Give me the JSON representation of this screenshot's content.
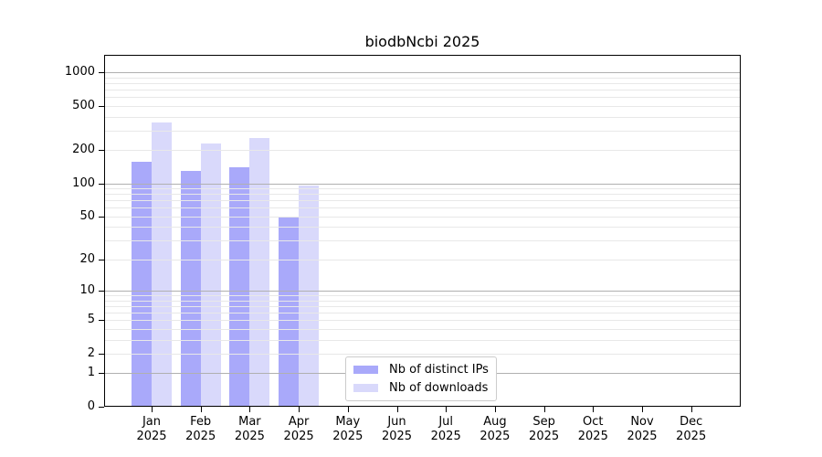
{
  "chart_data": {
    "type": "bar",
    "title": "biodbNcbi 2025",
    "x_axis": {
      "categories": [
        "Jan",
        "Feb",
        "Mar",
        "Apr",
        "May",
        "Jun",
        "Jul",
        "Aug",
        "Sep",
        "Oct",
        "Nov",
        "Dec"
      ],
      "year_label": "2025"
    },
    "y_axis": {
      "scale": "log1p",
      "tick_values": [
        0,
        1,
        2,
        5,
        10,
        20,
        50,
        100,
        200,
        500,
        1000
      ],
      "range_top": 1430
    },
    "series": [
      {
        "name": "Nb of distinct IPs",
        "color": "#a9a9fa",
        "values": [
          158,
          130,
          141,
          49,
          null,
          null,
          null,
          null,
          null,
          null,
          null,
          null
        ]
      },
      {
        "name": "Nb of downloads",
        "color": "#d9d9fb",
        "values": [
          353,
          231,
          259,
          95,
          null,
          null,
          null,
          null,
          null,
          null,
          null,
          null
        ]
      }
    ],
    "grid": {
      "major_values": [
        1,
        10,
        100,
        1000
      ],
      "minor_values": [
        2,
        3,
        4,
        5,
        6,
        7,
        8,
        9,
        20,
        30,
        40,
        50,
        60,
        70,
        80,
        90,
        200,
        300,
        400,
        500,
        600,
        700,
        800,
        900
      ],
      "major_color": "#b0b0b0",
      "minor_color": "#e8e8e8"
    },
    "legend": {
      "position": "bottom-center"
    },
    "colors": {
      "frame": "#000000",
      "background": "#ffffff",
      "text": "#000000"
    }
  }
}
